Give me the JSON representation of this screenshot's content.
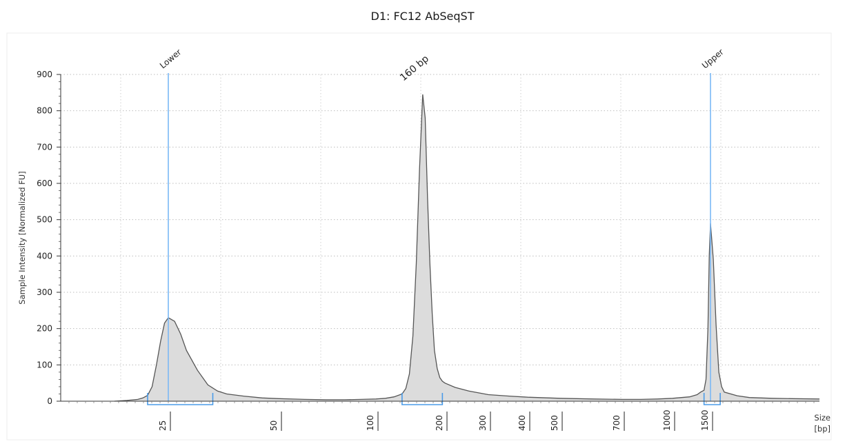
{
  "chart_data": {
    "type": "area",
    "title": "D1: FC12 AbSeqST",
    "ylabel": "Sample Intensity [Normalized FU]",
    "xlabel": "Size [bp]",
    "xlabel_lines": [
      "Size",
      "[bp]"
    ],
    "ylim": [
      0,
      900
    ],
    "yticks": [
      0,
      100,
      200,
      300,
      400,
      500,
      600,
      700,
      800,
      900
    ],
    "grid": true,
    "x_scale": "sizing-ladder",
    "xticks": [
      {
        "value": 25,
        "label": "25"
      },
      {
        "value": 50,
        "label": "50"
      },
      {
        "value": 100,
        "label": "100"
      },
      {
        "value": 200,
        "label": "200"
      },
      {
        "value": 300,
        "label": "300"
      },
      {
        "value": 400,
        "label": "400"
      },
      {
        "value": 500,
        "label": "500"
      },
      {
        "value": 700,
        "label": "700"
      },
      {
        "value": 1000,
        "label": "1000"
      },
      {
        "value": 1500,
        "label": "1500"
      }
    ],
    "markers": [
      {
        "name": "Lower",
        "x": 25,
        "color": "#7ab8f5"
      },
      {
        "name": "Upper",
        "x": 1500,
        "color": "#7ab8f5"
      }
    ],
    "peaks": [
      {
        "label": "Lower",
        "size_bp": 25,
        "height": 230
      },
      {
        "label": "160 bp",
        "size_bp": 160,
        "height": 845
      },
      {
        "label": "Upper",
        "size_bp": 1500,
        "height": 490
      }
    ],
    "regions": [
      {
        "from": 20,
        "to": 33,
        "color": "#4a9be8"
      },
      {
        "from": 130,
        "to": 195,
        "color": "#4a9be8"
      },
      {
        "from": 1400,
        "to": 1570,
        "color": "#4a9be8"
      }
    ],
    "series": [
      {
        "values": [
          [
            14,
            0
          ],
          [
            16,
            2
          ],
          [
            18,
            5
          ],
          [
            19,
            9
          ],
          [
            20,
            16
          ],
          [
            21,
            40
          ],
          [
            22,
            100
          ],
          [
            23,
            165
          ],
          [
            24,
            215
          ],
          [
            25,
            230
          ],
          [
            26,
            220
          ],
          [
            27,
            185
          ],
          [
            28,
            140
          ],
          [
            30,
            85
          ],
          [
            32,
            45
          ],
          [
            34,
            28
          ],
          [
            36,
            20
          ],
          [
            40,
            14
          ],
          [
            45,
            9
          ],
          [
            50,
            7
          ],
          [
            60,
            5
          ],
          [
            70,
            4
          ],
          [
            80,
            4
          ],
          [
            90,
            5
          ],
          [
            100,
            6
          ],
          [
            110,
            8
          ],
          [
            120,
            12
          ],
          [
            130,
            20
          ],
          [
            135,
            35
          ],
          [
            140,
            75
          ],
          [
            145,
            180
          ],
          [
            150,
            380
          ],
          [
            155,
            640
          ],
          [
            160,
            845
          ],
          [
            164,
            780
          ],
          [
            168,
            560
          ],
          [
            172,
            380
          ],
          [
            176,
            240
          ],
          [
            180,
            140
          ],
          [
            185,
            90
          ],
          [
            190,
            65
          ],
          [
            195,
            55
          ],
          [
            200,
            50
          ],
          [
            220,
            38
          ],
          [
            250,
            28
          ],
          [
            300,
            18
          ],
          [
            350,
            14
          ],
          [
            400,
            11
          ],
          [
            500,
            8
          ],
          [
            600,
            6
          ],
          [
            700,
            5
          ],
          [
            800,
            5
          ],
          [
            900,
            6
          ],
          [
            1000,
            8
          ],
          [
            1100,
            10
          ],
          [
            1200,
            12
          ],
          [
            1300,
            18
          ],
          [
            1350,
            25
          ],
          [
            1400,
            30
          ],
          [
            1430,
            60
          ],
          [
            1460,
            200
          ],
          [
            1480,
            400
          ],
          [
            1500,
            490
          ],
          [
            1520,
            390
          ],
          [
            1540,
            210
          ],
          [
            1560,
            80
          ],
          [
            1580,
            40
          ],
          [
            1600,
            25
          ],
          [
            1700,
            15
          ],
          [
            1800,
            10
          ],
          [
            2000,
            8
          ],
          [
            2200,
            7
          ],
          [
            2500,
            6
          ]
        ]
      }
    ]
  }
}
